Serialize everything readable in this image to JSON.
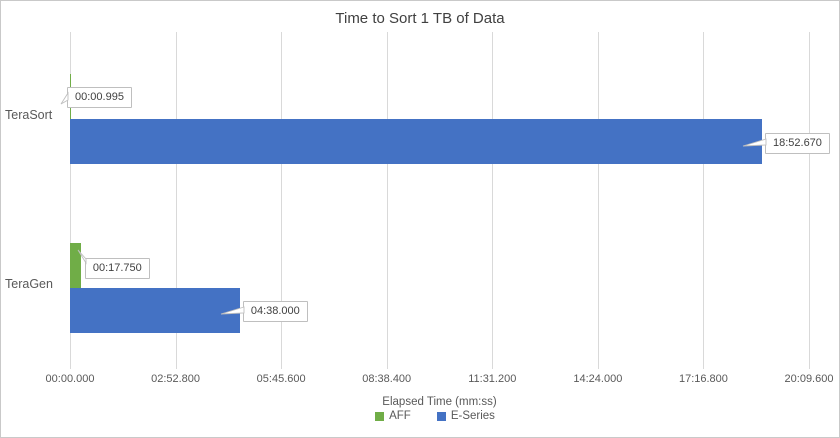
{
  "chart_data": {
    "type": "bar",
    "orientation": "horizontal",
    "title": "Time to Sort 1 TB of Data",
    "categories": [
      "TeraSort",
      "TeraGen"
    ],
    "series": [
      {
        "name": "AFF",
        "color": "#70AD47",
        "values_seconds": [
          0.995,
          17.75
        ],
        "data_labels": [
          "00:00.995",
          "00:17.750"
        ]
      },
      {
        "name": "E-Series",
        "color": "#4472C4",
        "values_seconds": [
          1132.67,
          278.0
        ],
        "data_labels": [
          "18:52.670",
          "04:38.000"
        ]
      }
    ],
    "x_axis": {
      "title": "Elapsed Time (mm:ss)",
      "ticks": [
        "00:00.000",
        "02:52.800",
        "05:45.600",
        "08:38.400",
        "11:31.200",
        "14:24.000",
        "17:16.800",
        "20:09.600"
      ],
      "tick_seconds": [
        0,
        172.8,
        345.6,
        518.4,
        691.2,
        864.0,
        1036.8,
        1209.6
      ],
      "min_seconds": 0,
      "max_seconds": 1209.6,
      "grid": true
    },
    "legend_position": "bottom",
    "colors": {
      "gridline": "#D9D9D9",
      "axis_text": "#595959",
      "title_text": "#404040",
      "callout_border": "#BFBFBF",
      "callout_background": "#FFFFFF",
      "chart_border": "#C9C9C9",
      "background": "#FFFFFF"
    }
  }
}
